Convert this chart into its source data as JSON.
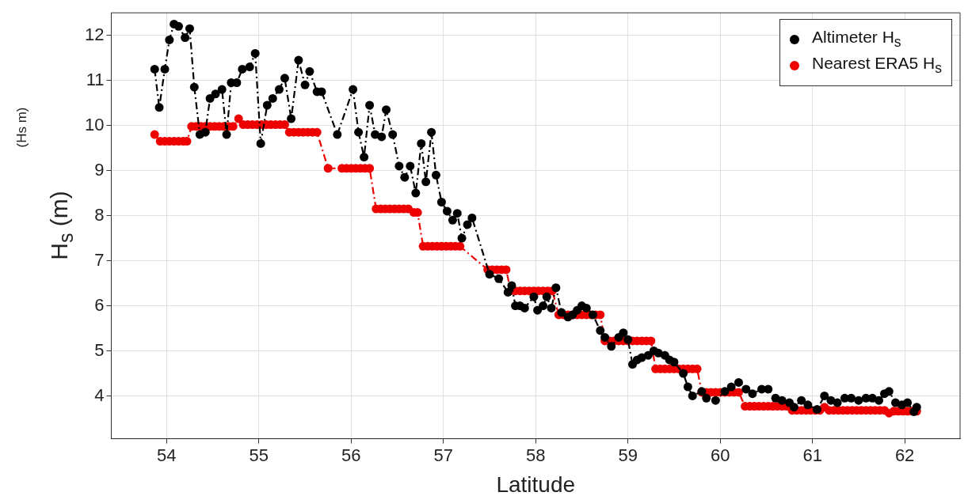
{
  "chart_data": {
    "type": "line",
    "xlabel": "Latitude",
    "ylabel": "H$_{s}$ (m)",
    "annotations": [
      "(Hs m)"
    ],
    "xlim": [
      53.4,
      62.6
    ],
    "xticks": [
      54,
      55,
      56,
      57,
      58,
      59,
      60,
      61,
      62
    ],
    "ylim": [
      3.05,
      12.5
    ],
    "yticks": [
      4,
      5,
      6,
      7,
      8,
      9,
      10,
      11,
      12
    ],
    "grid": true,
    "legend": "top right",
    "marker": "circle",
    "line_style": "dashed",
    "series": [
      {
        "name": "Altimeter H$_{s}$",
        "color": "#000000",
        "x": [
          53.87,
          53.92,
          53.98,
          54.03,
          54.08,
          54.13,
          54.2,
          54.25,
          54.3,
          54.36,
          54.42,
          54.47,
          54.53,
          54.6,
          54.65,
          54.7,
          54.76,
          54.82,
          54.9,
          54.96,
          55.02,
          55.09,
          55.15,
          55.22,
          55.28,
          55.35,
          55.43,
          55.5,
          55.55,
          55.63,
          55.68,
          55.85,
          56.02,
          56.08,
          56.14,
          56.2,
          56.26,
          56.33,
          56.38,
          56.45,
          56.52,
          56.58,
          56.64,
          56.7,
          56.76,
          56.81,
          56.87,
          56.92,
          56.98,
          57.04,
          57.1,
          57.15,
          57.2,
          57.26,
          57.31,
          57.5,
          57.6,
          57.7,
          57.74,
          57.78,
          57.83,
          57.88,
          57.98,
          58.02,
          58.08,
          58.12,
          58.17,
          58.22,
          58.28,
          58.35,
          58.4,
          58.45,
          58.5,
          58.55,
          58.62,
          58.7,
          58.75,
          58.82,
          58.9,
          58.95,
          59.0,
          59.05,
          59.1,
          59.15,
          59.22,
          59.28,
          59.33,
          59.4,
          59.45,
          59.5,
          59.6,
          59.65,
          59.7,
          59.8,
          59.85,
          59.95,
          60.05,
          60.12,
          60.2,
          60.28,
          60.35,
          60.45,
          60.52,
          60.6,
          60.67,
          60.75,
          60.8,
          60.88,
          60.95,
          61.05,
          61.13,
          61.2,
          61.27,
          61.35,
          61.42,
          61.5,
          61.58,
          61.65,
          61.72,
          61.78,
          61.83,
          61.9,
          61.97,
          62.03,
          62.1,
          62.13
        ],
        "values": [
          11.25,
          10.4,
          11.25,
          11.9,
          12.25,
          12.2,
          11.95,
          12.15,
          10.85,
          9.8,
          9.85,
          10.6,
          10.7,
          10.8,
          9.8,
          10.95,
          10.95,
          11.25,
          11.3,
          11.6,
          9.6,
          10.45,
          10.6,
          10.8,
          11.05,
          10.15,
          11.45,
          10.9,
          11.2,
          10.75,
          10.75,
          9.8,
          10.8,
          9.85,
          9.3,
          10.45,
          9.8,
          9.75,
          10.35,
          9.8,
          9.1,
          8.85,
          9.1,
          8.5,
          9.6,
          8.75,
          9.85,
          8.9,
          8.3,
          8.1,
          7.9,
          8.05,
          7.5,
          7.8,
          7.95,
          6.7,
          6.6,
          6.3,
          6.45,
          6.0,
          6.0,
          5.95,
          6.2,
          5.9,
          6.0,
          6.2,
          5.95,
          6.4,
          5.85,
          5.75,
          5.8,
          5.9,
          6.0,
          5.95,
          5.8,
          5.45,
          5.3,
          5.1,
          5.3,
          5.4,
          5.25,
          4.7,
          4.8,
          4.85,
          4.9,
          5.0,
          4.95,
          4.9,
          4.8,
          4.75,
          4.5,
          4.2,
          4.0,
          4.1,
          3.95,
          3.9,
          4.1,
          4.2,
          4.3,
          4.15,
          4.05,
          4.15,
          4.15,
          3.95,
          3.9,
          3.85,
          3.75,
          3.9,
          3.8,
          3.7,
          4.0,
          3.9,
          3.85,
          3.95,
          3.95,
          3.9,
          3.95,
          3.95,
          3.9,
          4.05,
          4.1,
          3.85,
          3.8,
          3.85,
          3.65,
          3.75
        ]
      },
      {
        "name": "Nearest ERA5 H$_{s}$",
        "color": "#ee0000",
        "x": [
          53.87,
          53.93,
          53.98,
          54.03,
          54.08,
          54.13,
          54.18,
          54.22,
          54.27,
          54.32,
          54.37,
          54.42,
          54.47,
          54.52,
          54.57,
          54.62,
          54.67,
          54.72,
          54.78,
          54.83,
          54.88,
          54.93,
          54.98,
          55.03,
          55.08,
          55.13,
          55.18,
          55.23,
          55.28,
          55.33,
          55.38,
          55.43,
          55.48,
          55.53,
          55.58,
          55.63,
          55.75,
          55.9,
          55.95,
          56.0,
          56.05,
          56.1,
          56.15,
          56.2,
          56.27,
          56.32,
          56.37,
          56.42,
          56.47,
          56.52,
          56.57,
          56.62,
          56.68,
          56.72,
          56.78,
          56.83,
          56.88,
          56.93,
          56.98,
          57.03,
          57.08,
          57.13,
          57.18,
          57.48,
          57.53,
          57.58,
          57.63,
          57.68,
          57.73,
          57.78,
          57.83,
          57.88,
          57.93,
          57.98,
          58.03,
          58.08,
          58.13,
          58.18,
          58.25,
          58.3,
          58.35,
          58.4,
          58.45,
          58.5,
          58.55,
          58.6,
          58.65,
          58.7,
          58.75,
          58.8,
          58.85,
          58.9,
          58.95,
          59.0,
          59.05,
          59.1,
          59.15,
          59.2,
          59.25,
          59.3,
          59.35,
          59.4,
          59.45,
          59.5,
          59.55,
          59.6,
          59.65,
          59.7,
          59.75,
          59.8,
          59.85,
          59.9,
          59.95,
          60.0,
          60.05,
          60.1,
          60.15,
          60.2,
          60.27,
          60.32,
          60.37,
          60.42,
          60.47,
          60.52,
          60.57,
          60.62,
          60.67,
          60.72,
          60.78,
          60.83,
          60.88,
          60.93,
          60.98,
          61.03,
          61.08,
          61.13,
          61.18,
          61.23,
          61.28,
          61.33,
          61.38,
          61.43,
          61.48,
          61.53,
          61.58,
          61.63,
          61.68,
          61.73,
          61.78,
          61.83,
          61.88,
          61.93,
          61.98,
          62.03,
          62.08,
          62.13
        ],
        "values": [
          9.8,
          9.65,
          9.65,
          9.65,
          9.65,
          9.65,
          9.65,
          9.65,
          9.98,
          9.98,
          9.98,
          9.98,
          9.98,
          9.98,
          9.98,
          9.98,
          9.98,
          9.98,
          10.15,
          10.02,
          10.02,
          10.02,
          10.02,
          10.02,
          10.02,
          10.02,
          10.02,
          10.02,
          10.02,
          9.85,
          9.85,
          9.85,
          9.85,
          9.85,
          9.85,
          9.85,
          9.05,
          9.05,
          9.05,
          9.05,
          9.05,
          9.05,
          9.05,
          9.05,
          8.15,
          8.15,
          8.15,
          8.15,
          8.15,
          8.15,
          8.15,
          8.15,
          8.07,
          8.07,
          7.32,
          7.32,
          7.32,
          7.32,
          7.32,
          7.32,
          7.32,
          7.32,
          7.32,
          6.8,
          6.8,
          6.8,
          6.8,
          6.8,
          6.33,
          6.33,
          6.33,
          6.33,
          6.33,
          6.33,
          6.33,
          6.33,
          6.33,
          6.33,
          5.8,
          5.8,
          5.8,
          5.8,
          5.8,
          5.8,
          5.8,
          5.8,
          5.8,
          5.8,
          5.22,
          5.22,
          5.22,
          5.22,
          5.22,
          5.22,
          5.22,
          5.22,
          5.22,
          5.22,
          5.22,
          4.6,
          4.6,
          4.6,
          4.6,
          4.6,
          4.6,
          4.6,
          4.6,
          4.6,
          4.6,
          4.08,
          4.08,
          4.08,
          4.08,
          4.08,
          4.08,
          4.08,
          4.08,
          4.08,
          3.77,
          3.77,
          3.77,
          3.77,
          3.77,
          3.77,
          3.77,
          3.77,
          3.77,
          3.77,
          3.68,
          3.68,
          3.68,
          3.68,
          3.68,
          3.68,
          3.68,
          3.75,
          3.68,
          3.68,
          3.68,
          3.68,
          3.68,
          3.68,
          3.68,
          3.68,
          3.68,
          3.68,
          3.68,
          3.68,
          3.68,
          3.62,
          3.66,
          3.66,
          3.66,
          3.66,
          3.66,
          3.66
        ]
      }
    ]
  }
}
